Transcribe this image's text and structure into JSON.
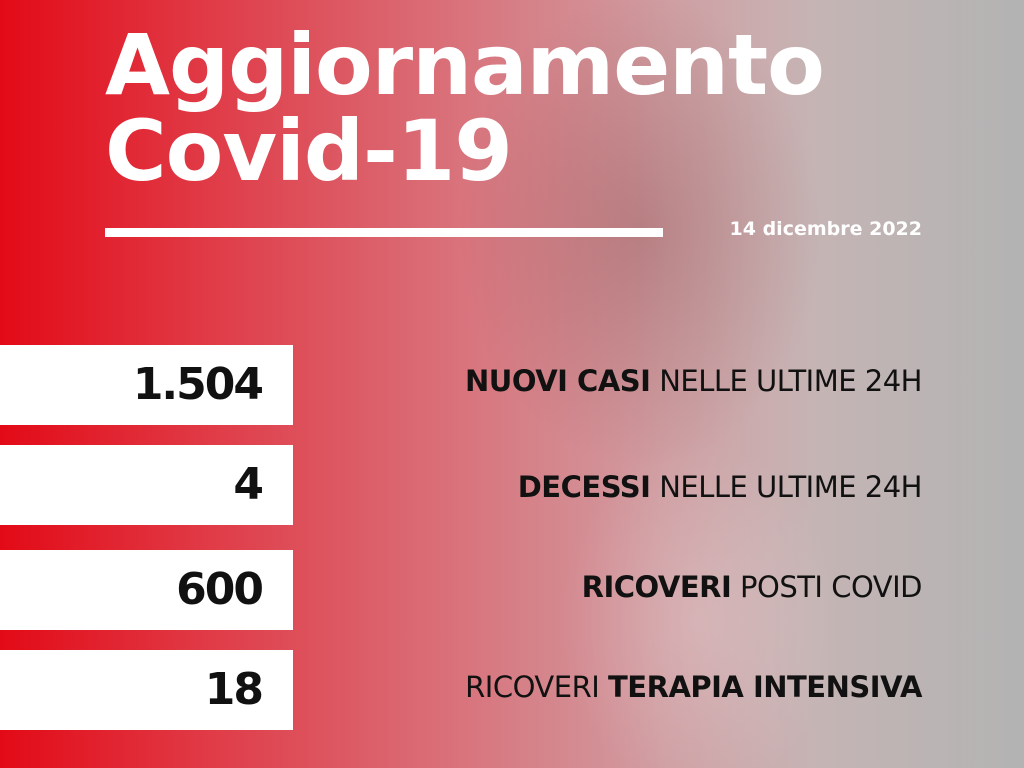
{
  "title_line1": "Aggiornamento",
  "title_line2": "Covid-19",
  "date": "14 dicembre 2022",
  "colors": {
    "accent": "#e30a17",
    "box": "#ffffff",
    "text": "#111111"
  },
  "stats": [
    {
      "value": "1.504",
      "label_bold": "NUOVI CASI",
      "label_regular": "NELLE ULTIME 24H"
    },
    {
      "value": "4",
      "label_bold": "DECESSI",
      "label_regular": "NELLE ULTIME 24H"
    },
    {
      "value": "600",
      "label_bold": "RICOVERI",
      "label_regular": "POSTI COVID"
    },
    {
      "value": "18",
      "label_regular_first": "RICOVERI",
      "label_bold": "TERAPIA INTENSIVA"
    }
  ]
}
